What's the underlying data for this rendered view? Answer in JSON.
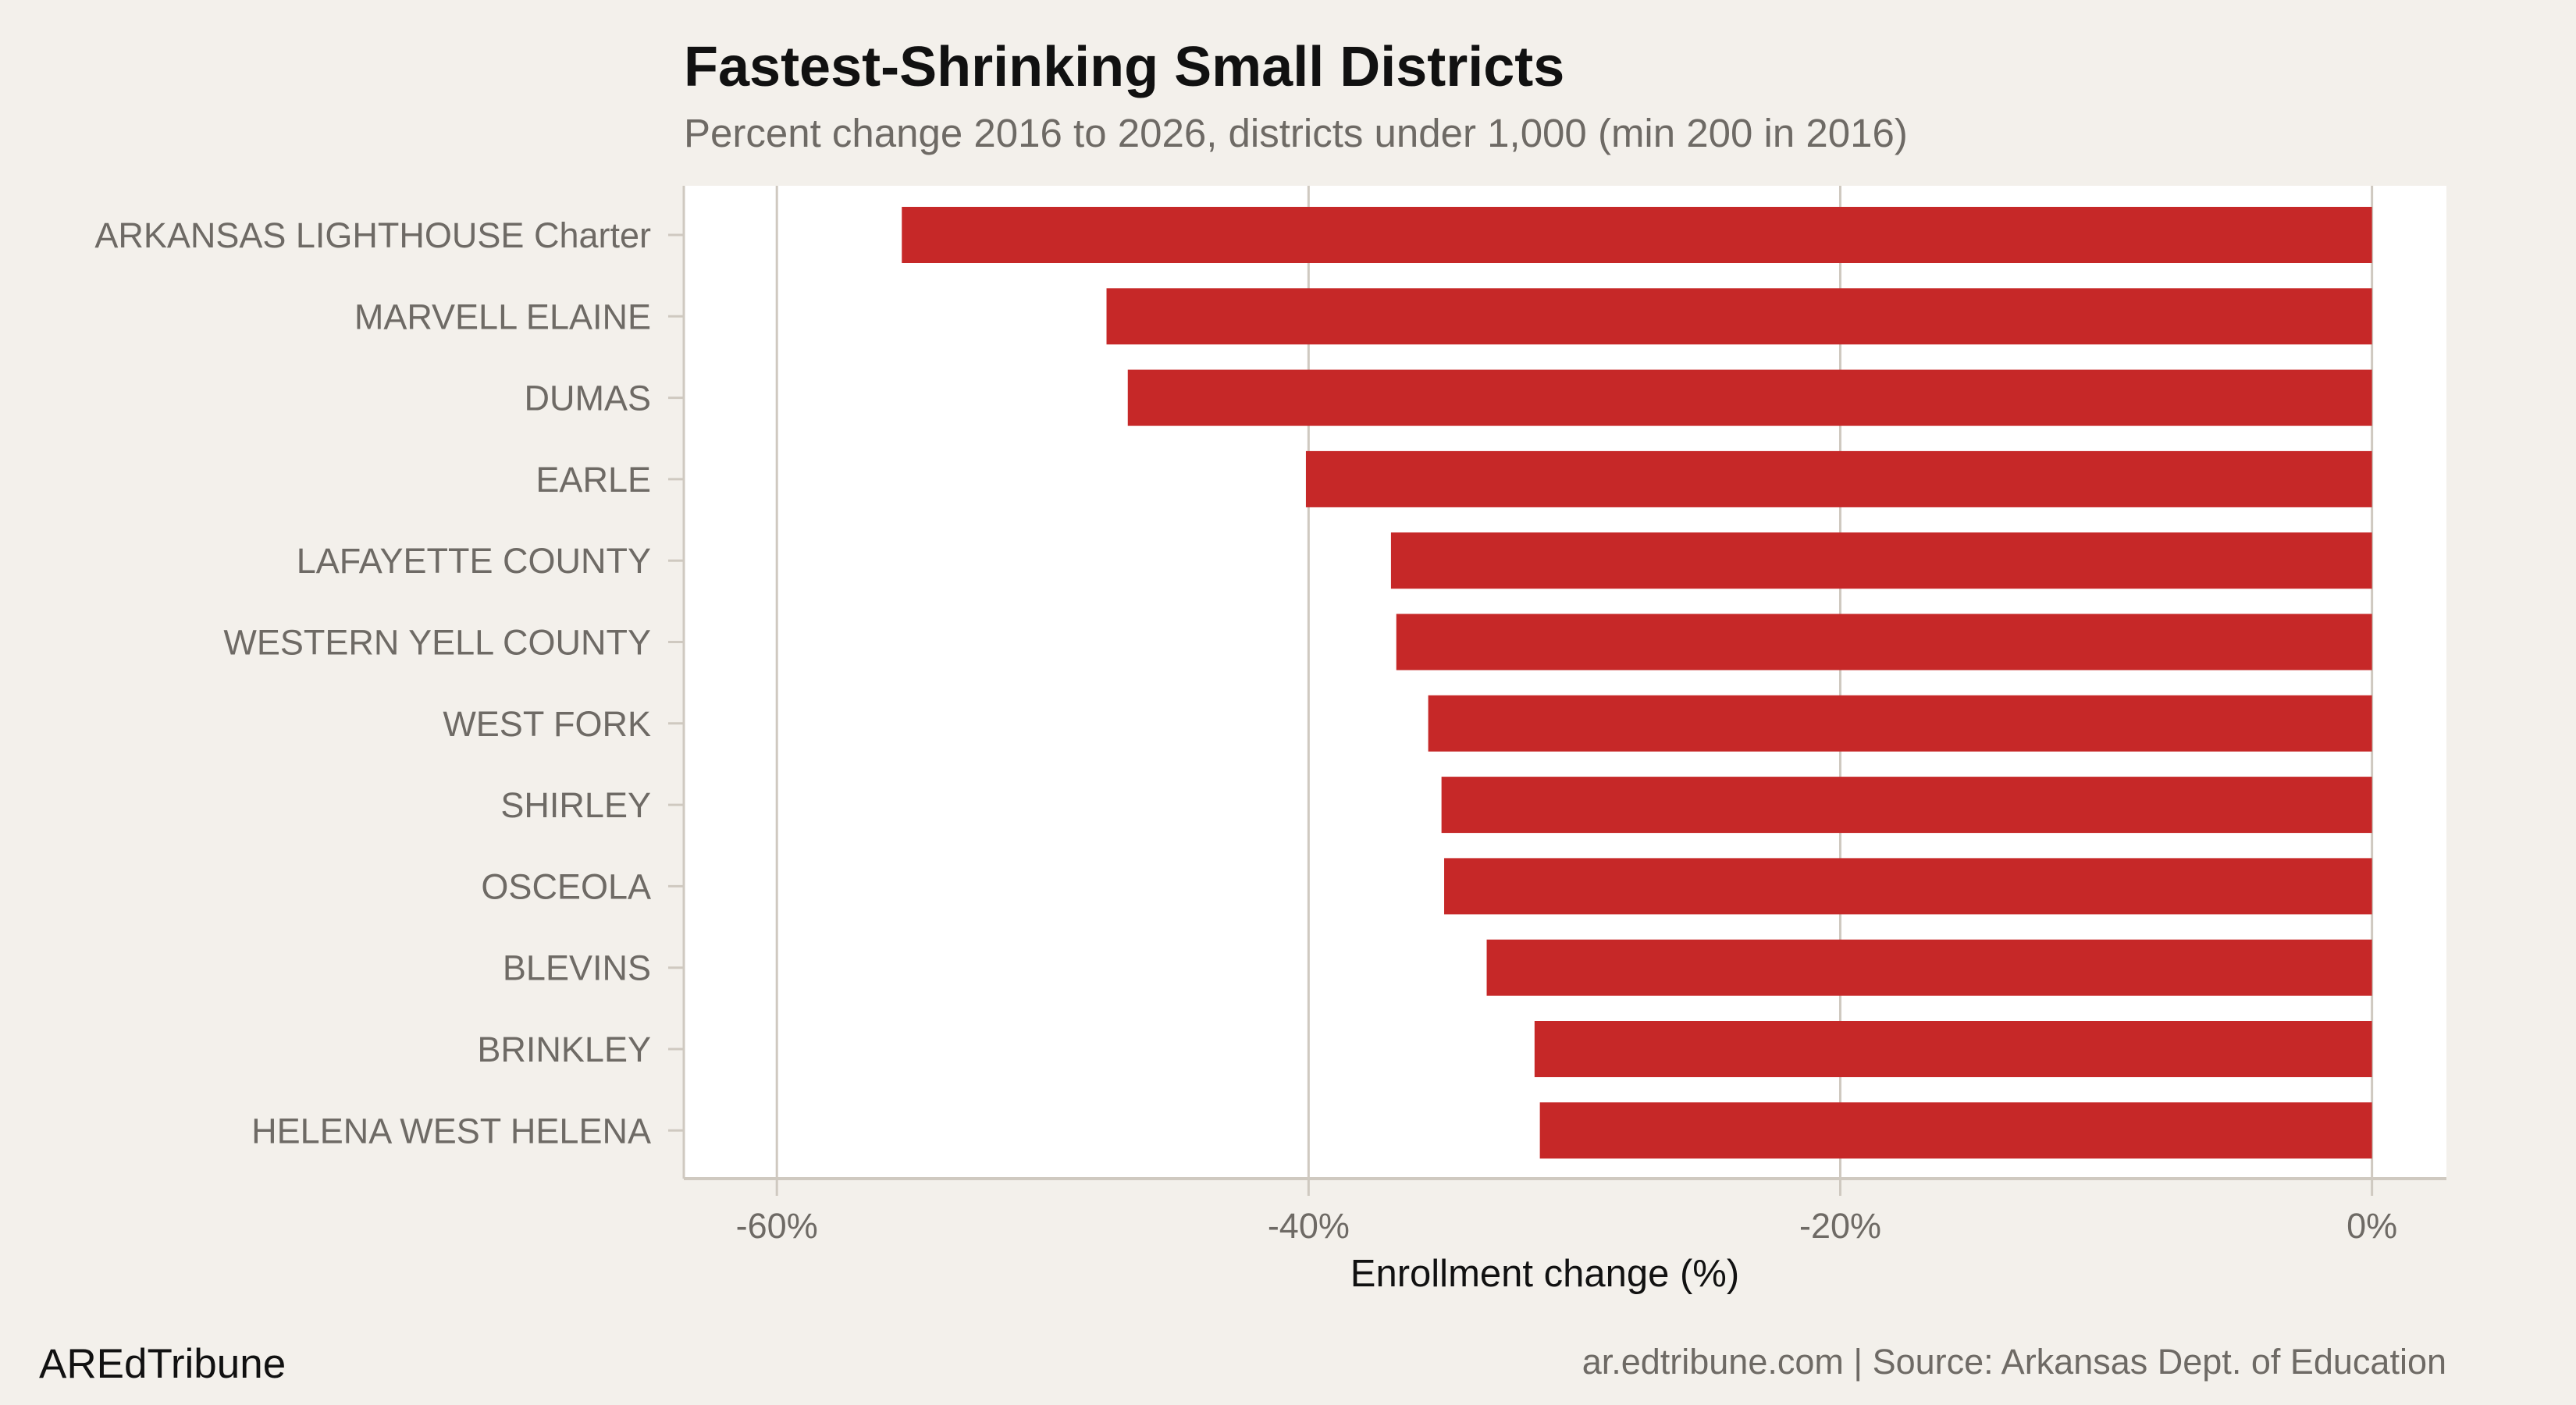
{
  "chart_data": {
    "type": "bar",
    "orientation": "horizontal",
    "title": "Fastest-Shrinking Small Districts",
    "subtitle": "Percent change 2016 to 2026, districts under 1,000 (min 200 in 2016)",
    "xlabel": "Enrollment change (%)",
    "ylabel": "",
    "categories": [
      "ARKANSAS LIGHTHOUSE Charter",
      "MARVELL ELAINE",
      "DUMAS",
      "EARLE",
      "LAFAYETTE COUNTY",
      "WESTERN YELL COUNTY",
      "WEST FORK",
      "SHIRLEY",
      "OSCEOLA",
      "BLEVINS",
      "BRINKLEY",
      "HELENA WEST HELENA"
    ],
    "values": [
      -55.3,
      -47.6,
      -46.8,
      -40.1,
      -36.9,
      -36.7,
      -35.5,
      -35.0,
      -34.9,
      -33.3,
      -31.5,
      -31.3
    ],
    "xlim": [
      -63.5,
      2.8
    ],
    "xticks": [
      -60,
      -40,
      -20,
      0
    ],
    "xtick_labels": [
      "-60%",
      "-40%",
      "-20%",
      "0%"
    ],
    "grid": "vertical",
    "colors": {
      "bar": "#c62828",
      "background": "#f3f0eb",
      "panel": "#ffffff",
      "grid": "#cfc9c0"
    }
  },
  "footer": {
    "brand": "AREdTribune",
    "caption": "ar.edtribune.com | Source: Arkansas Dept. of Education"
  }
}
